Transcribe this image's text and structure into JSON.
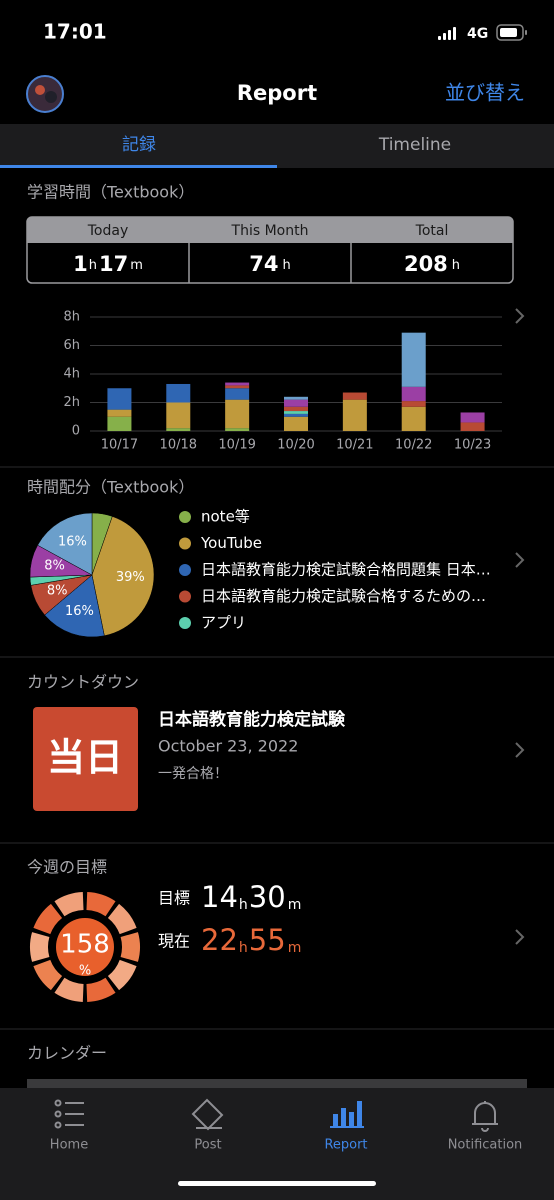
{
  "status_bar": {
    "time": "17:01",
    "network": "4G"
  },
  "header": {
    "title": "Report",
    "action": "並び替え"
  },
  "tabs": [
    "記録",
    "Timeline"
  ],
  "units": {
    "h": "h",
    "m": "m"
  },
  "study_time": {
    "title": "学習時間（Textbook）",
    "today": {
      "label": "Today",
      "hours": 1,
      "minutes": 17
    },
    "month": {
      "label": "This Month",
      "hours": 74
    },
    "total": {
      "label": "Total",
      "hours": 208
    }
  },
  "bar_chart": {
    "type": "bar",
    "stacked": true,
    "categories": [
      "10/17",
      "10/18",
      "10/19",
      "10/20",
      "10/21",
      "10/22",
      "10/23"
    ],
    "series": [
      {
        "color": "#86b04a",
        "values": [
          1.0,
          0.2,
          0.2,
          0,
          0,
          0,
          0
        ]
      },
      {
        "color": "#c09a3c",
        "values": [
          0.5,
          1.8,
          2.0,
          1.0,
          2.2,
          1.7,
          0
        ]
      },
      {
        "color": "#2f66b3",
        "values": [
          1.5,
          1.3,
          0.8,
          0.2,
          0,
          0,
          0
        ]
      },
      {
        "color": "#5ccfae",
        "values": [
          0,
          0,
          0,
          0.2,
          0,
          0,
          0
        ]
      },
      {
        "color": "#b84a34",
        "values": [
          0,
          0,
          0.2,
          0.3,
          0.5,
          0.4,
          0.6
        ]
      },
      {
        "color": "#9b3fa4",
        "values": [
          0,
          0,
          0.2,
          0.5,
          0,
          1.0,
          0.7
        ]
      },
      {
        "color": "#6b9fcb",
        "values": [
          0,
          0,
          0,
          0.2,
          0,
          3.8,
          0
        ]
      }
    ],
    "ylim": [
      0,
      8
    ],
    "yticks": [
      0,
      {
        "value": 2,
        "label": "2h"
      },
      {
        "value": 4,
        "label": "4h"
      },
      {
        "value": 6,
        "label": "6h"
      },
      {
        "value": 8,
        "label": "8h"
      }
    ],
    "grid": true
  },
  "pie_chart": {
    "type": "pie",
    "title": "時間配分（Textbook）",
    "categories": [
      "note等",
      "YouTube",
      "日本語教育能力検定試験合格問題集 日本…",
      "日本語教育能力検定試験合格するための…",
      "アプリ",
      null,
      null
    ],
    "values": [
      5,
      39,
      16,
      8,
      2,
      8,
      16
    ],
    "value_labels": [
      null,
      "39%",
      "16%",
      "8%",
      null,
      "8%",
      "16%"
    ],
    "colors": [
      "#86b04a",
      "#c09a3c",
      "#2f66b3",
      "#b84a34",
      "#5ccfae",
      "#9b3fa4",
      "#6b9fcb"
    ]
  },
  "countdown": {
    "title": "カウントダウン",
    "badge": "当日",
    "name": "日本語教育能力検定試験",
    "date": "October 23, 2022",
    "note": "一発合格！"
  },
  "weekly_goal": {
    "title": "今週の目標",
    "percent": 158,
    "percent_sign": "%",
    "goal": {
      "label": "目標",
      "hours": 14,
      "minutes": 30
    },
    "current": {
      "label": "現在",
      "hours": 22,
      "minutes": 55
    }
  },
  "calendar": {
    "title": "カレンダー"
  },
  "tab_bar": [
    "Home",
    "Post",
    "Report",
    "Notification"
  ]
}
